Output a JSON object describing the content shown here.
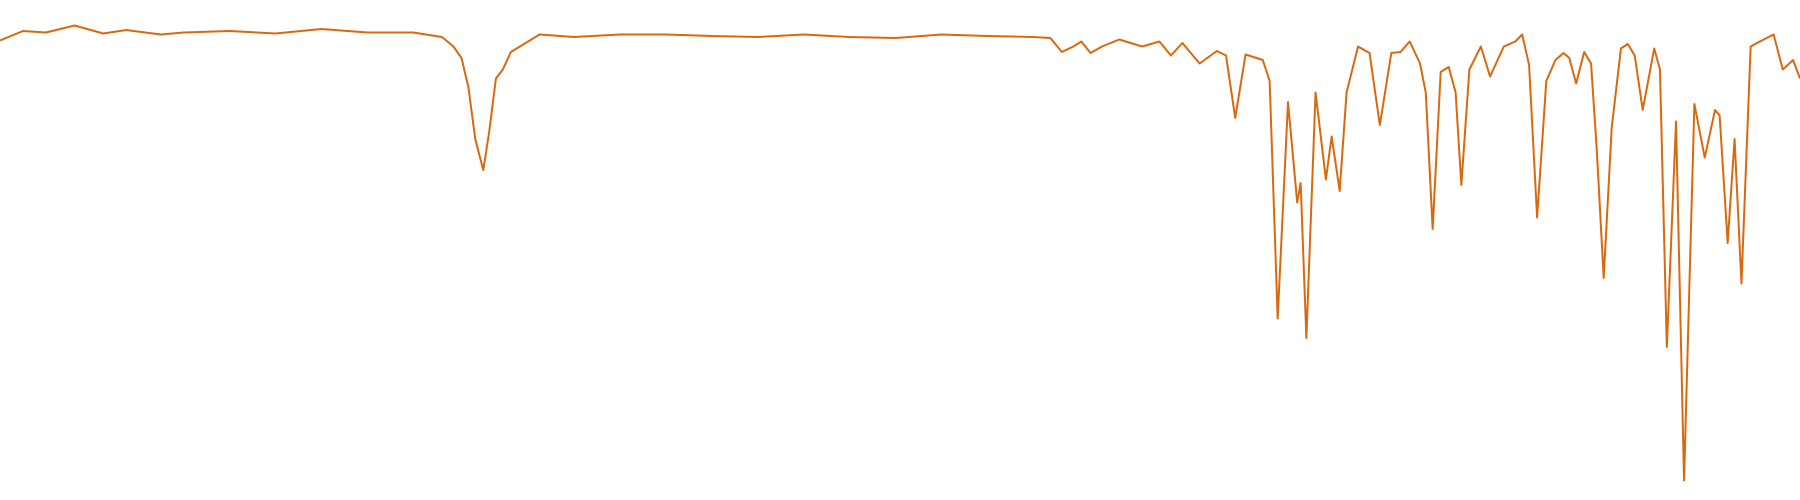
{
  "chart_data": {
    "type": "line",
    "color": "#d9690f",
    "x": [
      0,
      20,
      40,
      65,
      90,
      110,
      140,
      160,
      200,
      240,
      280,
      320,
      360,
      385,
      395,
      402,
      408,
      414,
      421,
      426,
      432,
      438,
      445,
      460,
      470,
      500,
      540,
      580,
      620,
      660,
      700,
      740,
      780,
      820,
      860,
      900,
      915,
      925,
      935,
      942,
      950,
      960,
      975,
      995,
      1010,
      1020,
      1030,
      1045,
      1060,
      1068,
      1076,
      1085,
      1100,
      1106,
      1113,
      1122,
      1130,
      1133,
      1138,
      1146,
      1155,
      1160,
      1167,
      1173,
      1183,
      1193,
      1202,
      1212,
      1220,
      1228,
      1237,
      1242,
      1248,
      1255,
      1262,
      1268,
      1273,
      1280,
      1290,
      1298,
      1310,
      1320,
      1326,
      1332,
      1339,
      1347,
      1355,
      1362,
      1367,
      1373,
      1380,
      1386,
      1391,
      1397,
      1404,
      1412,
      1418,
      1424,
      1431,
      1441,
      1446,
      1452,
      1460,
      1467,
      1476,
      1485,
      1494,
      1498,
      1505,
      1511,
      1517,
      1525,
      1533,
      1545,
      1553,
      1562,
      1568
    ],
    "values": [
      91.9,
      93.8,
      93.5,
      94.9,
      93.3,
      94.0,
      93.1,
      93.5,
      93.8,
      93.3,
      94.2,
      93.5,
      93.5,
      92.6,
      90.7,
      88.4,
      82.6,
      72.2,
      66.0,
      73.4,
      84.3,
      86.1,
      89.6,
      91.7,
      93.1,
      92.6,
      93.1,
      93.1,
      92.8,
      92.6,
      93.1,
      92.6,
      92.4,
      93.1,
      92.8,
      92.6,
      92.4,
      89.6,
      90.7,
      91.7,
      89.4,
      90.7,
      92.1,
      90.7,
      91.7,
      88.9,
      91.4,
      87.3,
      89.8,
      88.9,
      76.4,
      89.1,
      88.0,
      83.8,
      36.3,
      79.6,
      59.5,
      63.4,
      32.4,
      81.5,
      64.1,
      72.7,
      61.8,
      81.5,
      90.7,
      89.4,
      75.0,
      89.4,
      89.6,
      91.7,
      87.3,
      81.5,
      54.2,
      85.6,
      86.6,
      81.5,
      63.0,
      86.1,
      90.7,
      84.7,
      90.7,
      91.7,
      93.1,
      87.0,
      56.5,
      83.8,
      88.0,
      89.4,
      88.4,
      83.3,
      89.6,
      87.3,
      69.9,
      44.4,
      74.5,
      90.3,
      91.2,
      88.9,
      78.0,
      90.3,
      86.1,
      30.6,
      75.7,
      3.9,
      79.2,
      68.5,
      78.0,
      76.9,
      51.4,
      72.2,
      43.3,
      90.7,
      91.7,
      93.1,
      86.1,
      88.0,
      84.3
    ],
    "xlim": [
      0,
      1568
    ],
    "ylim": [
      0,
      100
    ]
  }
}
